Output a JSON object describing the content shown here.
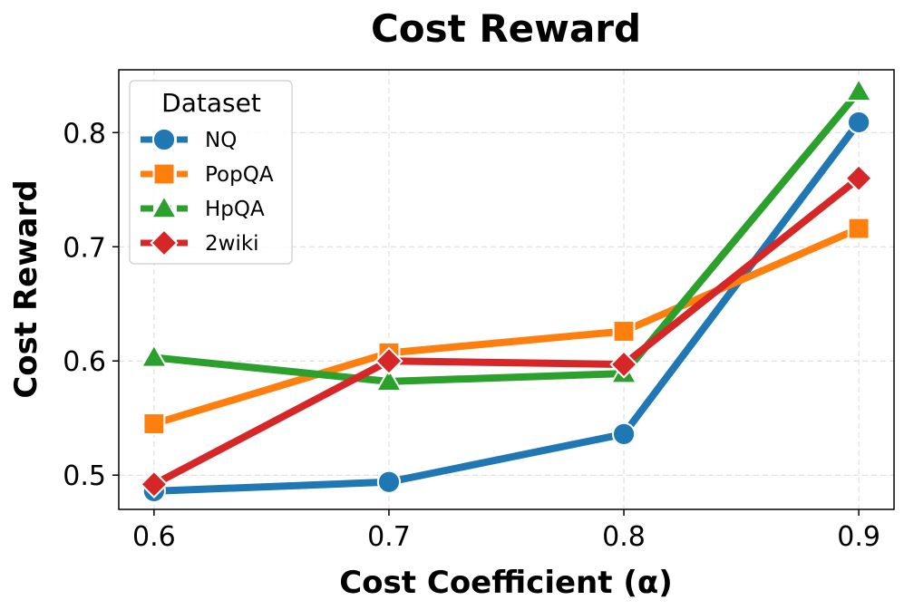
{
  "chart_data": {
    "type": "line",
    "title": "Cost Reward",
    "xlabel": "Cost Coefficient (α)",
    "ylabel": "Cost Reward",
    "x": [
      0.6,
      0.7,
      0.8,
      0.9
    ],
    "x_tick_labels": [
      "0.6",
      "0.7",
      "0.8",
      "0.9"
    ],
    "xlim": [
      0.585,
      0.915
    ],
    "y_ticks": [
      0.5,
      0.6,
      0.7,
      0.8
    ],
    "y_tick_labels": [
      "0.5",
      "0.6",
      "0.7",
      "0.8"
    ],
    "ylim": [
      0.47,
      0.855
    ],
    "grid": true,
    "legend": {
      "title": "Dataset",
      "position": "upper-left"
    },
    "series": [
      {
        "name": "NQ",
        "marker": "circle",
        "color": "#1f77b4",
        "values": [
          0.486,
          0.494,
          0.536,
          0.809
        ]
      },
      {
        "name": "PopQA",
        "marker": "square",
        "color": "#ff7f0e",
        "values": [
          0.545,
          0.607,
          0.626,
          0.716
        ]
      },
      {
        "name": "HpQA",
        "marker": "triangle",
        "color": "#2ca02c",
        "values": [
          0.603,
          0.582,
          0.589,
          0.836
        ]
      },
      {
        "name": "2wiki",
        "marker": "diamond",
        "color": "#d62728",
        "values": [
          0.492,
          0.6,
          0.597,
          0.76
        ]
      }
    ]
  }
}
